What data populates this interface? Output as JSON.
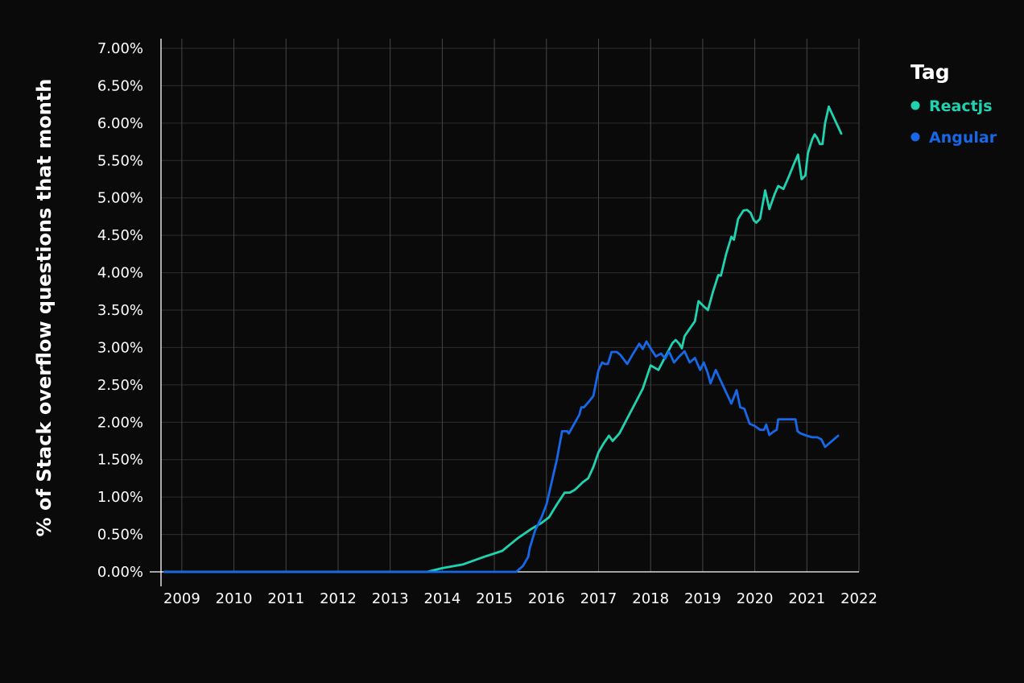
{
  "chart_data": {
    "type": "line",
    "title": "",
    "xlabel": "",
    "ylabel": "% of Stack overflow questions that month",
    "x_ticks": [
      "2009",
      "2010",
      "2011",
      "2012",
      "2013",
      "2014",
      "2015",
      "2016",
      "2017",
      "2018",
      "2019",
      "2020",
      "2021",
      "2022"
    ],
    "y_ticks": [
      "0.00%",
      "0.50%",
      "1.00%",
      "1.50%",
      "2.00%",
      "2.50%",
      "3.00%",
      "3.50%",
      "4.00%",
      "4.50%",
      "5.00%",
      "5.50%",
      "6.00%",
      "6.50%",
      "7.00%"
    ],
    "xlim": [
      2008.6,
      2022
    ],
    "ylim": [
      0,
      7
    ],
    "grid": true,
    "legend": {
      "title": "Tag",
      "placement": "right"
    },
    "series": [
      {
        "name": "Reactjs",
        "color": "#20d3b0",
        "points": [
          [
            2008.67,
            0
          ],
          [
            2013.71,
            0
          ],
          [
            2014.0,
            0.05
          ],
          [
            2014.4,
            0.1
          ],
          [
            2014.8,
            0.2
          ],
          [
            2015.15,
            0.28
          ],
          [
            2015.45,
            0.45
          ],
          [
            2015.7,
            0.57
          ],
          [
            2015.9,
            0.65
          ],
          [
            2016.05,
            0.73
          ],
          [
            2016.2,
            0.9
          ],
          [
            2016.35,
            1.06
          ],
          [
            2016.45,
            1.06
          ],
          [
            2016.55,
            1.1
          ],
          [
            2016.7,
            1.2
          ],
          [
            2016.8,
            1.25
          ],
          [
            2016.9,
            1.4
          ],
          [
            2017.0,
            1.6
          ],
          [
            2017.1,
            1.72
          ],
          [
            2017.2,
            1.82
          ],
          [
            2017.27,
            1.75
          ],
          [
            2017.4,
            1.85
          ],
          [
            2017.55,
            2.05
          ],
          [
            2017.7,
            2.25
          ],
          [
            2017.85,
            2.45
          ],
          [
            2018.0,
            2.76
          ],
          [
            2018.15,
            2.7
          ],
          [
            2018.3,
            2.9
          ],
          [
            2018.42,
            3.06
          ],
          [
            2018.48,
            3.1
          ],
          [
            2018.55,
            3.05
          ],
          [
            2018.6,
            2.99
          ],
          [
            2018.65,
            3.15
          ],
          [
            2018.75,
            3.25
          ],
          [
            2018.85,
            3.35
          ],
          [
            2018.92,
            3.62
          ],
          [
            2019.02,
            3.55
          ],
          [
            2019.1,
            3.5
          ],
          [
            2019.2,
            3.75
          ],
          [
            2019.3,
            3.97
          ],
          [
            2019.35,
            3.96
          ],
          [
            2019.45,
            4.25
          ],
          [
            2019.55,
            4.48
          ],
          [
            2019.6,
            4.44
          ],
          [
            2019.68,
            4.72
          ],
          [
            2019.78,
            4.83
          ],
          [
            2019.85,
            4.84
          ],
          [
            2019.92,
            4.8
          ],
          [
            2019.98,
            4.7
          ],
          [
            2020.03,
            4.67
          ],
          [
            2020.1,
            4.72
          ],
          [
            2020.2,
            5.1
          ],
          [
            2020.28,
            4.85
          ],
          [
            2020.38,
            5.05
          ],
          [
            2020.45,
            5.16
          ],
          [
            2020.55,
            5.12
          ],
          [
            2020.65,
            5.28
          ],
          [
            2020.75,
            5.45
          ],
          [
            2020.83,
            5.58
          ],
          [
            2020.9,
            5.25
          ],
          [
            2020.97,
            5.3
          ],
          [
            2021.02,
            5.6
          ],
          [
            2021.1,
            5.78
          ],
          [
            2021.15,
            5.85
          ],
          [
            2021.2,
            5.8
          ],
          [
            2021.25,
            5.72
          ],
          [
            2021.3,
            5.72
          ],
          [
            2021.35,
            6.0
          ],
          [
            2021.42,
            6.22
          ],
          [
            2021.5,
            6.1
          ],
          [
            2021.6,
            5.95
          ],
          [
            2021.66,
            5.86
          ]
        ]
      },
      {
        "name": "Angular",
        "color": "#1668e8",
        "points": [
          [
            2008.67,
            0
          ],
          [
            2015.42,
            0
          ],
          [
            2015.55,
            0.08
          ],
          [
            2015.65,
            0.2
          ],
          [
            2015.68,
            0.32
          ],
          [
            2015.78,
            0.55
          ],
          [
            2015.9,
            0.72
          ],
          [
            2016.0,
            0.9
          ],
          [
            2016.1,
            1.2
          ],
          [
            2016.2,
            1.5
          ],
          [
            2016.3,
            1.88
          ],
          [
            2016.4,
            1.88
          ],
          [
            2016.43,
            1.85
          ],
          [
            2016.55,
            2.0
          ],
          [
            2016.63,
            2.1
          ],
          [
            2016.67,
            2.2
          ],
          [
            2016.72,
            2.2
          ],
          [
            2016.82,
            2.28
          ],
          [
            2016.9,
            2.35
          ],
          [
            2017.0,
            2.7
          ],
          [
            2017.07,
            2.8
          ],
          [
            2017.12,
            2.78
          ],
          [
            2017.18,
            2.78
          ],
          [
            2017.25,
            2.94
          ],
          [
            2017.35,
            2.94
          ],
          [
            2017.42,
            2.9
          ],
          [
            2017.55,
            2.78
          ],
          [
            2017.65,
            2.9
          ],
          [
            2017.78,
            3.05
          ],
          [
            2017.85,
            2.98
          ],
          [
            2017.92,
            3.08
          ],
          [
            2018.0,
            2.99
          ],
          [
            2018.1,
            2.88
          ],
          [
            2018.2,
            2.92
          ],
          [
            2018.28,
            2.85
          ],
          [
            2018.35,
            2.95
          ],
          [
            2018.45,
            2.8
          ],
          [
            2018.55,
            2.88
          ],
          [
            2018.65,
            2.95
          ],
          [
            2018.75,
            2.8
          ],
          [
            2018.85,
            2.86
          ],
          [
            2018.95,
            2.7
          ],
          [
            2019.02,
            2.8
          ],
          [
            2019.1,
            2.65
          ],
          [
            2019.15,
            2.52
          ],
          [
            2019.25,
            2.7
          ],
          [
            2019.35,
            2.55
          ],
          [
            2019.45,
            2.4
          ],
          [
            2019.55,
            2.25
          ],
          [
            2019.65,
            2.43
          ],
          [
            2019.72,
            2.2
          ],
          [
            2019.8,
            2.18
          ],
          [
            2019.9,
            1.98
          ],
          [
            2020.0,
            1.95
          ],
          [
            2020.1,
            1.9
          ],
          [
            2020.18,
            1.9
          ],
          [
            2020.22,
            1.97
          ],
          [
            2020.28,
            1.83
          ],
          [
            2020.35,
            1.87
          ],
          [
            2020.42,
            1.9
          ],
          [
            2020.45,
            2.04
          ],
          [
            2020.55,
            2.04
          ],
          [
            2020.68,
            2.04
          ],
          [
            2020.78,
            2.04
          ],
          [
            2020.82,
            1.88
          ],
          [
            2020.88,
            1.85
          ],
          [
            2021.0,
            1.82
          ],
          [
            2021.1,
            1.8
          ],
          [
            2021.2,
            1.8
          ],
          [
            2021.28,
            1.77
          ],
          [
            2021.35,
            1.67
          ],
          [
            2021.5,
            1.76
          ],
          [
            2021.6,
            1.82
          ]
        ]
      }
    ]
  }
}
